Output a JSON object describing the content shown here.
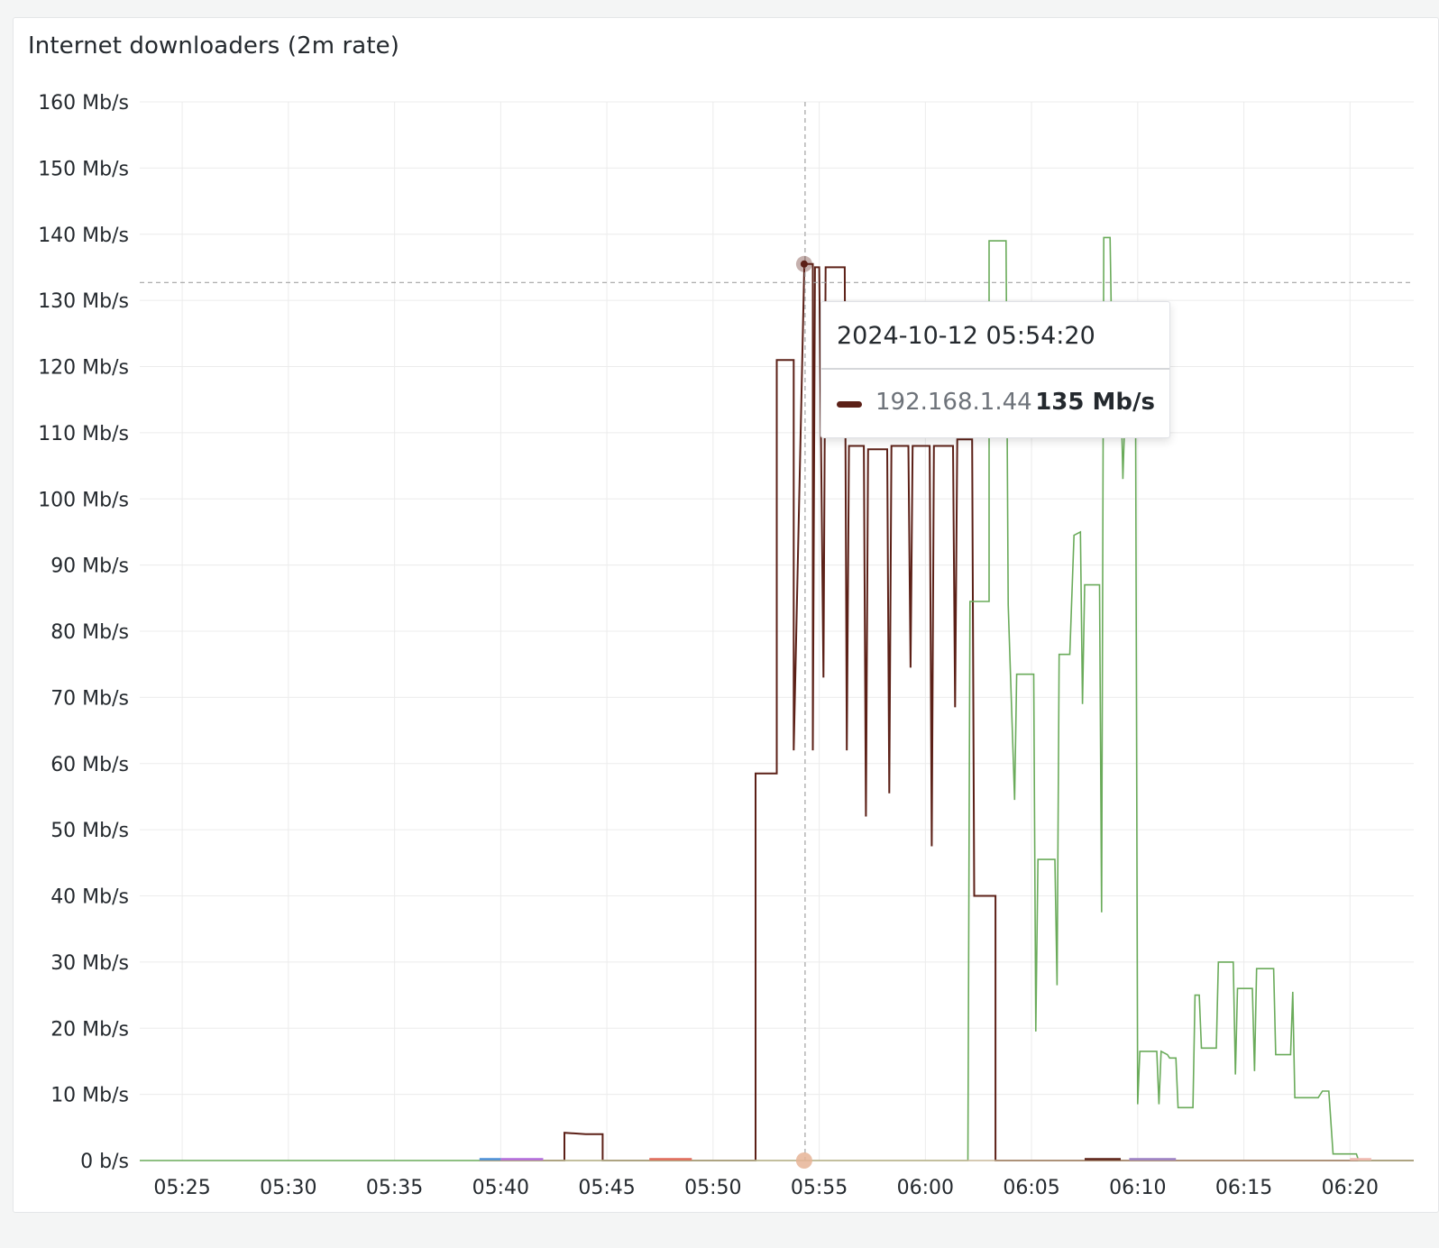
{
  "panel": {
    "title": "Internet downloaders (2m rate)"
  },
  "tooltip": {
    "time": "2024-10-12 05:54:20",
    "series_name": "192.168.1.44",
    "value": "135 Mb/s",
    "color": "#5c2017"
  },
  "colors": {
    "grid": "#ececec",
    "crosshair": "#a3a3a3",
    "series_a": "#5c2017",
    "series_b": "#6aab5a"
  },
  "chart_data": {
    "type": "line",
    "title": "Internet downloaders (2m rate)",
    "xlabel": "",
    "ylabel": "",
    "x_ticks": [
      "05:25",
      "05:30",
      "05:35",
      "05:40",
      "05:45",
      "05:50",
      "05:55",
      "06:00",
      "06:05",
      "06:10",
      "06:15",
      "06:20"
    ],
    "y_ticks": [
      "0 b/s",
      "10 Mb/s",
      "20 Mb/s",
      "30 Mb/s",
      "40 Mb/s",
      "50 Mb/s",
      "60 Mb/s",
      "70 Mb/s",
      "80 Mb/s",
      "90 Mb/s",
      "100 Mb/s",
      "110 Mb/s",
      "120 Mb/s",
      "130 Mb/s",
      "140 Mb/s",
      "150 Mb/s",
      "160 Mb/s"
    ],
    "ylim": [
      0,
      160
    ],
    "xlim": [
      "05:23",
      "06:23"
    ],
    "grid": true,
    "crosshair": {
      "x": "05:54:20",
      "y": 132.7
    },
    "series": [
      {
        "name": "192.168.1.44",
        "color": "#5c2017",
        "points": [
          [
            "05:39",
            0
          ],
          [
            "05:43",
            0
          ],
          [
            "05:43",
            4.2
          ],
          [
            "05:44",
            4
          ],
          [
            "05:44.8",
            4
          ],
          [
            "05:44.8",
            0
          ],
          [
            "05:52",
            0
          ],
          [
            "05:52",
            58.5
          ],
          [
            "05:53",
            58.5
          ],
          [
            "05:53",
            121
          ],
          [
            "05:53.8",
            121
          ],
          [
            "05:53.8",
            62
          ],
          [
            "05:54.3",
            135.5
          ],
          [
            "05:54.7",
            135.5
          ],
          [
            "05:54.7",
            62
          ],
          [
            "05:54.8",
            135
          ],
          [
            "05:55",
            135
          ],
          [
            "05:55.2",
            73
          ],
          [
            "05:55.3",
            135
          ],
          [
            "05:56.2",
            135
          ],
          [
            "05:56.3",
            62
          ],
          [
            "05:56.4",
            108
          ],
          [
            "05:57.1",
            108
          ],
          [
            "05:57.2",
            52
          ],
          [
            "05:57.3",
            107.5
          ],
          [
            "05:58.2",
            107.5
          ],
          [
            "05:58.3",
            55.5
          ],
          [
            "05:58.4",
            108
          ],
          [
            "05:59.2",
            108
          ],
          [
            "05:59.3",
            74.5
          ],
          [
            "05:59.4",
            108
          ],
          [
            "06:00.2",
            108
          ],
          [
            "06:00.3",
            47.5
          ],
          [
            "06:00.4",
            108
          ],
          [
            "06:01.3",
            108
          ],
          [
            "06:01.4",
            68.5
          ],
          [
            "06:01.5",
            109
          ],
          [
            "06:02.2",
            109
          ],
          [
            "06:02.3",
            40
          ],
          [
            "06:03.3",
            40
          ],
          [
            "06:03.3",
            0
          ],
          [
            "06:23",
            0
          ]
        ]
      },
      {
        "name": "",
        "color": "#6aab5a",
        "points": [
          [
            "05:23",
            0
          ],
          [
            "06:02",
            0
          ],
          [
            "06:02.1",
            84.5
          ],
          [
            "06:03",
            84.5
          ],
          [
            "06:03",
            139
          ],
          [
            "06:03.8",
            139
          ],
          [
            "06:03.9",
            84
          ],
          [
            "06:04.2",
            54.5
          ],
          [
            "06:04.3",
            73.5
          ],
          [
            "06:05.1",
            73.5
          ],
          [
            "06:05.2",
            19.5
          ],
          [
            "06:05.3",
            45.5
          ],
          [
            "06:06.1",
            45.5
          ],
          [
            "06:06.2",
            26.5
          ],
          [
            "06:06.3",
            76.5
          ],
          [
            "06:06.8",
            76.5
          ],
          [
            "06:07",
            94.5
          ],
          [
            "06:07.3",
            95
          ],
          [
            "06:07.4",
            69
          ],
          [
            "06:07.5",
            87
          ],
          [
            "06:08.2",
            87
          ],
          [
            "06:08.3",
            37.5
          ],
          [
            "06:08.4",
            139.5
          ],
          [
            "06:08.7",
            139.5
          ],
          [
            "06:08.8",
            119
          ],
          [
            "06:09.2",
            118
          ],
          [
            "06:09.3",
            103
          ],
          [
            "06:09.4",
            113
          ],
          [
            "06:09.9",
            113
          ],
          [
            "06:10",
            8.5
          ],
          [
            "06:10.1",
            16.5
          ],
          [
            "06:10.9",
            16.5
          ],
          [
            "06:11",
            8.5
          ],
          [
            "06:11.1",
            16.5
          ],
          [
            "06:11.4",
            16
          ],
          [
            "06:11.5",
            15.5
          ],
          [
            "06:11.8",
            15.5
          ],
          [
            "06:11.9",
            8
          ],
          [
            "06:12.6",
            8
          ],
          [
            "06:12.7",
            25
          ],
          [
            "06:12.9",
            25
          ],
          [
            "06:13",
            17
          ],
          [
            "06:13.7",
            17
          ],
          [
            "06:13.8",
            30
          ],
          [
            "06:14.5",
            30
          ],
          [
            "06:14.6",
            13
          ],
          [
            "06:14.7",
            26
          ],
          [
            "06:15.4",
            26
          ],
          [
            "06:15.5",
            13.5
          ],
          [
            "06:15.6",
            29
          ],
          [
            "06:16.4",
            29
          ],
          [
            "06:16.5",
            16
          ],
          [
            "06:17.2",
            16
          ],
          [
            "06:17.3",
            25.5
          ],
          [
            "06:17.4",
            9.5
          ],
          [
            "06:18.5",
            9.5
          ],
          [
            "06:18.7",
            10.5
          ],
          [
            "06:19",
            10.5
          ],
          [
            "06:19.2",
            1
          ],
          [
            "06:20.3",
            1
          ],
          [
            "06:20.4",
            0
          ],
          [
            "06:23",
            0
          ]
        ]
      },
      {
        "name": "",
        "color": "#c8b89a",
        "points": [
          [
            "05:39",
            0
          ],
          [
            "06:23",
            0
          ]
        ]
      }
    ]
  }
}
